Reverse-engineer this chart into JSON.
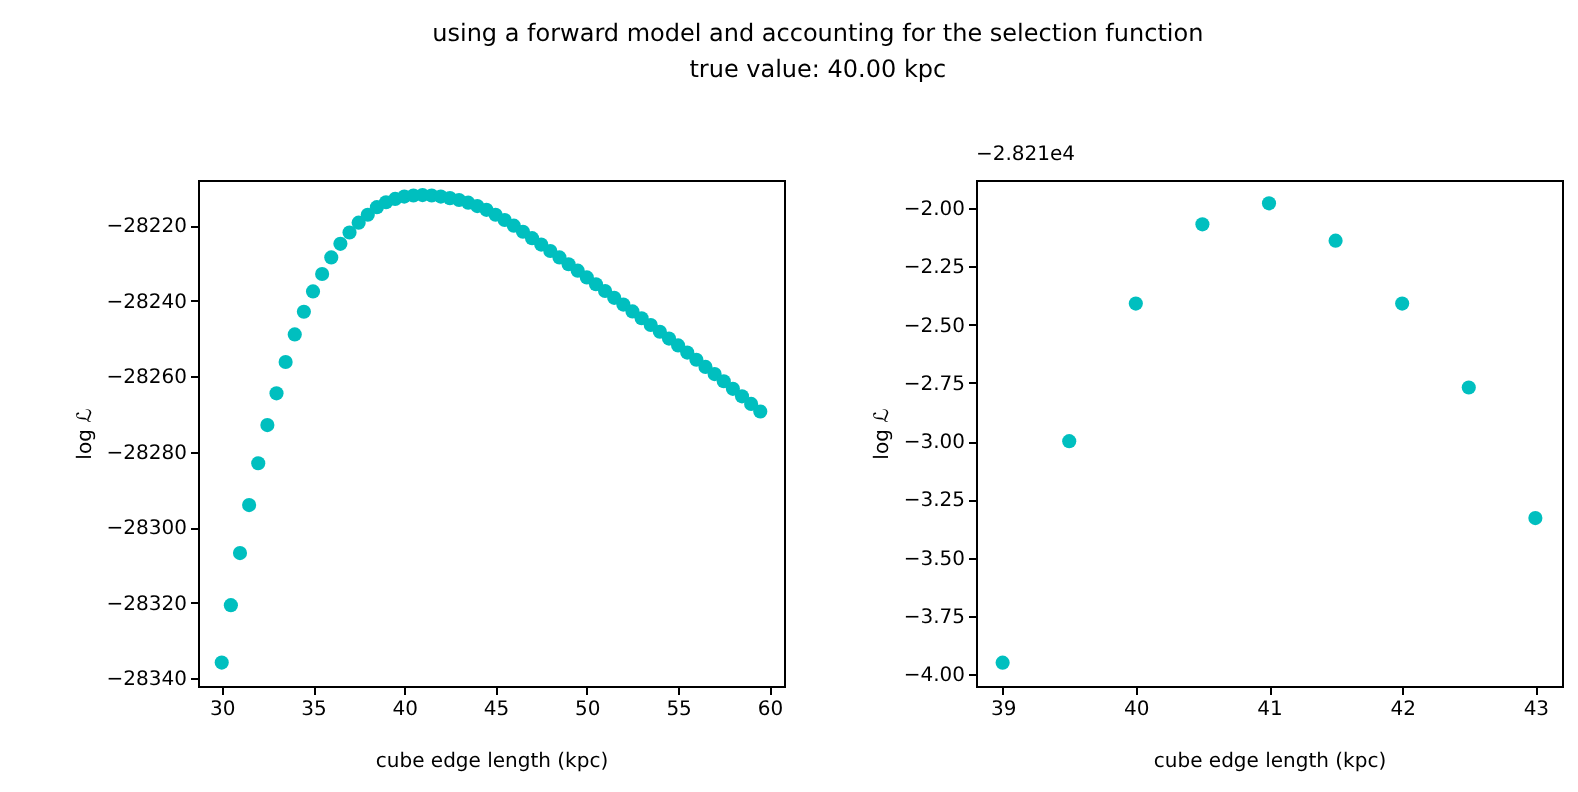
{
  "chart_data": [
    {
      "type": "scatter",
      "title": "using a forward model and accounting for the selection function",
      "subtitle": "true value: 40.00 kpc",
      "xlabel": "cube edge length (kpc)",
      "ylabel": "log ℒ",
      "marker": "circle",
      "grid": false,
      "x": [
        30,
        30.5,
        31,
        31.5,
        32,
        32.5,
        33,
        33.5,
        34,
        34.5,
        35,
        35.5,
        36,
        36.5,
        37,
        37.5,
        38,
        38.5,
        39,
        39.5,
        40,
        40.5,
        41,
        41.5,
        42,
        42.5,
        43,
        43.5,
        44,
        44.5,
        45,
        45.5,
        46,
        46.5,
        47,
        47.5,
        48,
        48.5,
        49,
        49.5,
        50,
        50.5,
        51,
        51.5,
        52,
        52.5,
        53,
        53.5,
        54,
        54.5,
        55,
        55.5,
        56,
        56.5,
        57,
        57.5,
        58,
        58.5,
        59,
        59.5
      ],
      "series": [
        {
          "color": "#00bfbf",
          "values": [
            -28335.8,
            -28320.6,
            -28306.8,
            -28294.1,
            -28283.0,
            -28272.9,
            -28264.5,
            -28256.2,
            -28248.9,
            -28242.9,
            -28237.5,
            -28232.9,
            -28228.5,
            -28224.9,
            -28221.9,
            -28219.3,
            -28217.2,
            -28215.2,
            -28213.9,
            -28213.0,
            -28212.4,
            -28212.1,
            -28212.0,
            -28212.1,
            -28212.4,
            -28212.8,
            -28213.3,
            -28214.0,
            -28214.9,
            -28215.9,
            -28217.2,
            -28218.6,
            -28220.1,
            -28221.7,
            -28223.4,
            -28225.1,
            -28226.8,
            -28228.5,
            -28230.3,
            -28232.0,
            -28233.8,
            -28235.6,
            -28237.4,
            -28239.2,
            -28241.0,
            -28242.8,
            -28244.6,
            -28246.4,
            -28248.2,
            -28250.0,
            -28251.8,
            -28253.7,
            -28255.6,
            -28257.5,
            -28259.4,
            -28261.3,
            -28263.3,
            -28265.3,
            -28267.3,
            -28269.3
          ]
        }
      ],
      "xlim": [
        28.7,
        60.8
      ],
      "xticks": [
        30,
        35,
        40,
        45,
        50,
        55,
        60
      ],
      "ylim": [
        -28342,
        -28208
      ],
      "yticks": [
        -28340,
        -28320,
        -28300,
        -28280,
        -28260,
        -28240,
        -28220
      ]
    },
    {
      "type": "scatter",
      "xlabel": "cube edge length (kpc)",
      "ylabel": "log ℒ",
      "marker": "circle",
      "grid": false,
      "annotations": [
        "−2.821e4"
      ],
      "x": [
        39,
        39.5,
        40,
        40.5,
        41,
        41.5,
        42,
        42.5,
        43
      ],
      "series": [
        {
          "color": "#00bfbf",
          "values": [
            -3.95,
            -3.0,
            -2.41,
            -2.07,
            -1.98,
            -2.14,
            -2.41,
            -2.77,
            -3.33
          ]
        }
      ],
      "xlim": [
        38.8,
        43.2
      ],
      "xticks": [
        39,
        40,
        41,
        42,
        43
      ],
      "ylim": [
        -4.05,
        -1.88
      ],
      "yticks": [
        {
          "value": -4,
          "label": "−4.00"
        },
        -3.75,
        {
          "value": -3.5,
          "label": "−3.50"
        },
        -3.25,
        {
          "value": -3,
          "label": "−3.00"
        },
        -2.75,
        {
          "value": -2.5,
          "label": "−2.50"
        },
        -2.25,
        {
          "value": -2,
          "label": "−2.00"
        }
      ]
    }
  ]
}
